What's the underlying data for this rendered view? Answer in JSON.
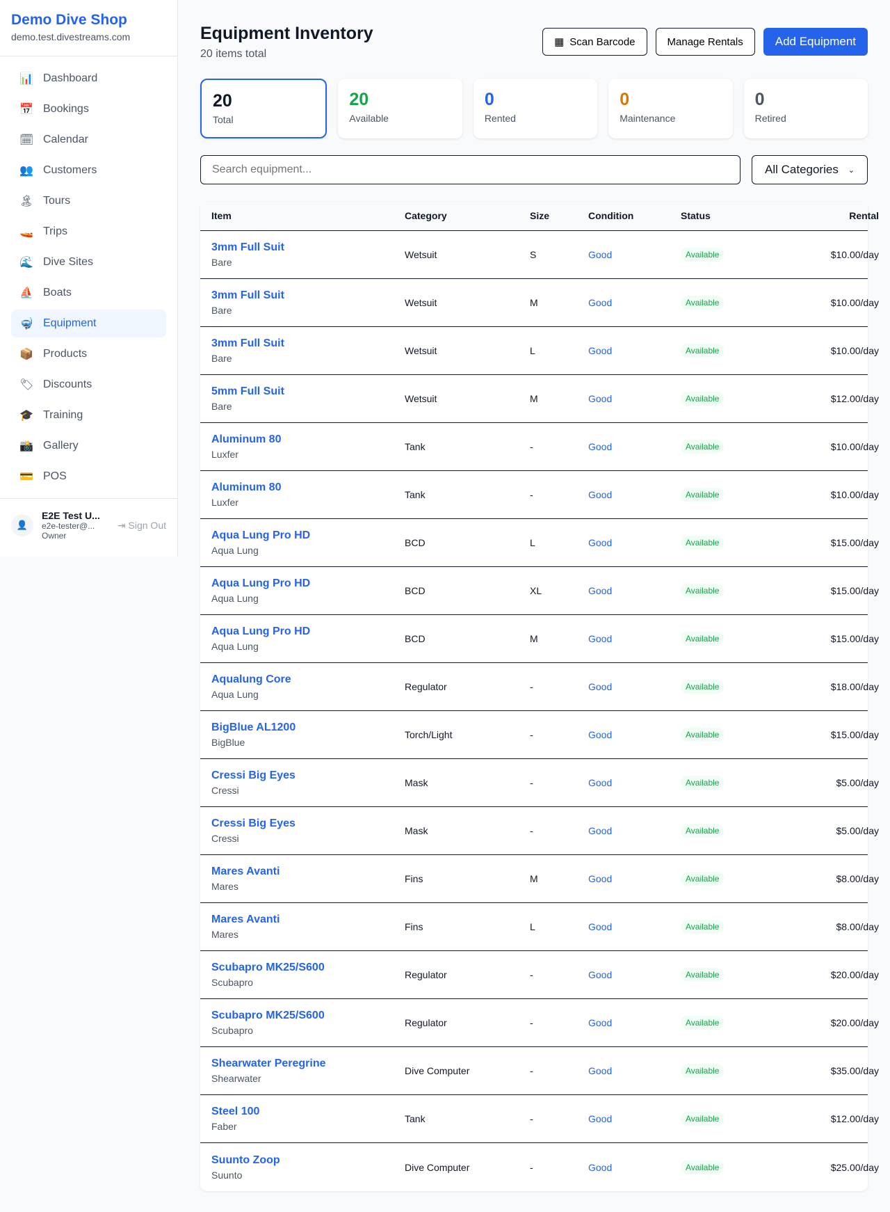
{
  "sidebar": {
    "shop_name": "Demo Dive Shop",
    "shop_url": "demo.test.divestreams.com",
    "items": [
      {
        "label": "Dashboard",
        "icon": "📊"
      },
      {
        "label": "Bookings",
        "icon": "📅"
      },
      {
        "label": "Calendar",
        "icon": "🗓"
      },
      {
        "label": "Customers",
        "icon": "👥"
      },
      {
        "label": "Tours",
        "icon": "🏝"
      },
      {
        "label": "Trips",
        "icon": "🚤"
      },
      {
        "label": "Dive Sites",
        "icon": "🌊"
      },
      {
        "label": "Boats",
        "icon": "⛵"
      },
      {
        "label": "Equipment",
        "icon": "🤿"
      },
      {
        "label": "Products",
        "icon": "📦"
      },
      {
        "label": "Discounts",
        "icon": "🏷"
      },
      {
        "label": "Training",
        "icon": "🎓"
      },
      {
        "label": "Gallery",
        "icon": "📸"
      },
      {
        "label": "POS",
        "icon": "💳"
      }
    ],
    "active": "Equipment",
    "user": {
      "name": "E2E Test U...",
      "email": "e2e-tester@...",
      "role": "Owner",
      "sign_out": "Sign Out"
    }
  },
  "header": {
    "title": "Equipment Inventory",
    "subtitle": "20 items total",
    "scan_label": "Scan Barcode",
    "manage_label": "Manage Rentals",
    "add_label": "Add Equipment"
  },
  "stats": [
    {
      "value": "20",
      "label": "Total",
      "color": "#111827"
    },
    {
      "value": "20",
      "label": "Available",
      "color": "#16a34a"
    },
    {
      "value": "0",
      "label": "Rented",
      "color": "#2563eb"
    },
    {
      "value": "0",
      "label": "Maintenance",
      "color": "#d97706"
    },
    {
      "value": "0",
      "label": "Retired",
      "color": "#4b5563"
    }
  ],
  "filters": {
    "search_placeholder": "Search equipment...",
    "category": "All Categories"
  },
  "table": {
    "columns": [
      "Item",
      "Category",
      "Size",
      "Condition",
      "Status",
      "Rental"
    ],
    "rows": [
      [
        "3mm Full Suit",
        "Bare",
        "Wetsuit",
        "S",
        "Good",
        "Available",
        "$10.00/day"
      ],
      [
        "3mm Full Suit",
        "Bare",
        "Wetsuit",
        "M",
        "Good",
        "Available",
        "$10.00/day"
      ],
      [
        "3mm Full Suit",
        "Bare",
        "Wetsuit",
        "L",
        "Good",
        "Available",
        "$10.00/day"
      ],
      [
        "5mm Full Suit",
        "Bare",
        "Wetsuit",
        "M",
        "Good",
        "Available",
        "$12.00/day"
      ],
      [
        "Aluminum 80",
        "Luxfer",
        "Tank",
        "-",
        "Good",
        "Available",
        "$10.00/day"
      ],
      [
        "Aluminum 80",
        "Luxfer",
        "Tank",
        "-",
        "Good",
        "Available",
        "$10.00/day"
      ],
      [
        "Aqua Lung Pro HD",
        "Aqua Lung",
        "BCD",
        "L",
        "Good",
        "Available",
        "$15.00/day"
      ],
      [
        "Aqua Lung Pro HD",
        "Aqua Lung",
        "BCD",
        "XL",
        "Good",
        "Available",
        "$15.00/day"
      ],
      [
        "Aqua Lung Pro HD",
        "Aqua Lung",
        "BCD",
        "M",
        "Good",
        "Available",
        "$15.00/day"
      ],
      [
        "Aqualung Core",
        "Aqua Lung",
        "Regulator",
        "-",
        "Good",
        "Available",
        "$18.00/day"
      ],
      [
        "BigBlue AL1200",
        "BigBlue",
        "Torch/Light",
        "-",
        "Good",
        "Available",
        "$15.00/day"
      ],
      [
        "Cressi Big Eyes",
        "Cressi",
        "Mask",
        "-",
        "Good",
        "Available",
        "$5.00/day"
      ],
      [
        "Cressi Big Eyes",
        "Cressi",
        "Mask",
        "-",
        "Good",
        "Available",
        "$5.00/day"
      ],
      [
        "Mares Avanti",
        "Mares",
        "Fins",
        "M",
        "Good",
        "Available",
        "$8.00/day"
      ],
      [
        "Mares Avanti",
        "Mares",
        "Fins",
        "L",
        "Good",
        "Available",
        "$8.00/day"
      ],
      [
        "Scubapro MK25/S600",
        "Scubapro",
        "Regulator",
        "-",
        "Good",
        "Available",
        "$20.00/day"
      ],
      [
        "Scubapro MK25/S600",
        "Scubapro",
        "Regulator",
        "-",
        "Good",
        "Available",
        "$20.00/day"
      ],
      [
        "Shearwater Peregrine",
        "Shearwater",
        "Dive Computer",
        "-",
        "Good",
        "Available",
        "$35.00/day"
      ],
      [
        "Steel 100",
        "Faber",
        "Tank",
        "-",
        "Good",
        "Available",
        "$12.00/day"
      ],
      [
        "Suunto Zoop",
        "Suunto",
        "Dive Computer",
        "-",
        "Good",
        "Available",
        "$25.00/day"
      ]
    ]
  }
}
